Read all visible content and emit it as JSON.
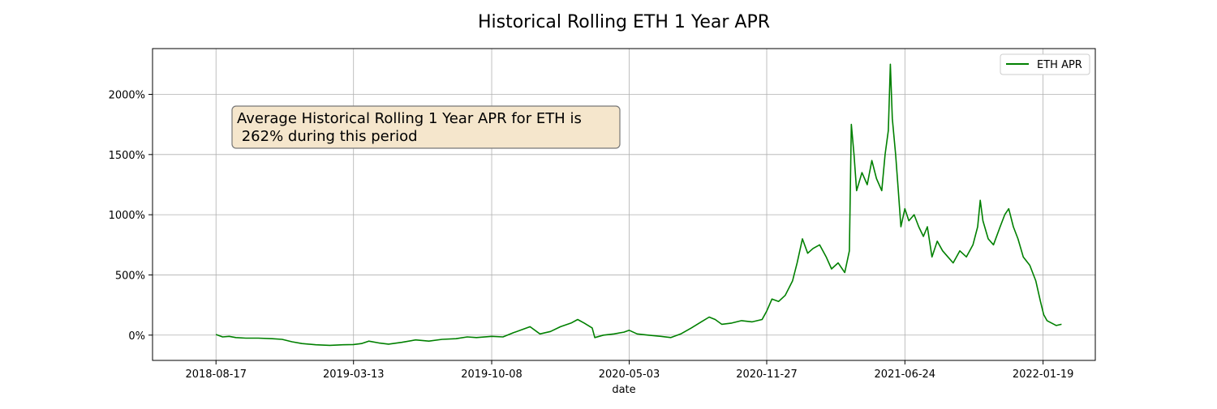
{
  "chart_data": {
    "type": "line",
    "title": "Historical Rolling ETH 1 Year APR",
    "xlabel": "date",
    "ylabel": "",
    "x_tick_labels": [
      "2018-08-17",
      "2019-03-13",
      "2019-10-08",
      "2020-05-03",
      "2020-11-27",
      "2021-06-24",
      "2022-01-19"
    ],
    "y_ticks": [
      0,
      500,
      1000,
      1500,
      2000
    ],
    "y_tick_labels": [
      "0%",
      "500%",
      "1000%",
      "1500%",
      "2000%"
    ],
    "xlim": [
      "2018-05-13",
      "2022-04-08"
    ],
    "ylim": [
      -210,
      2380
    ],
    "grid": true,
    "legend_position": "top-right",
    "annotation": {
      "lines": [
        "Average Historical Rolling 1 Year APR for ETH is",
        " 262% during this period"
      ],
      "background": "#f5e6cc"
    },
    "series": [
      {
        "name": "ETH APR",
        "color": "#008000",
        "points": [
          [
            "2018-08-17",
            5
          ],
          [
            "2018-08-27",
            -15
          ],
          [
            "2018-09-06",
            -10
          ],
          [
            "2018-09-16",
            -20
          ],
          [
            "2018-10-01",
            -25
          ],
          [
            "2018-10-20",
            -25
          ],
          [
            "2018-11-10",
            -30
          ],
          [
            "2018-11-25",
            -35
          ],
          [
            "2018-12-10",
            -55
          ],
          [
            "2018-12-25",
            -70
          ],
          [
            "2019-01-15",
            -80
          ],
          [
            "2019-02-05",
            -85
          ],
          [
            "2019-02-25",
            -80
          ],
          [
            "2019-03-13",
            -78
          ],
          [
            "2019-03-25",
            -70
          ],
          [
            "2019-04-05",
            -50
          ],
          [
            "2019-04-20",
            -65
          ],
          [
            "2019-05-05",
            -75
          ],
          [
            "2019-05-25",
            -60
          ],
          [
            "2019-06-15",
            -40
          ],
          [
            "2019-07-05",
            -50
          ],
          [
            "2019-07-25",
            -35
          ],
          [
            "2019-08-15",
            -30
          ],
          [
            "2019-09-01",
            -15
          ],
          [
            "2019-09-15",
            -20
          ],
          [
            "2019-10-08",
            -10
          ],
          [
            "2019-10-25",
            -15
          ],
          [
            "2019-11-10",
            20
          ],
          [
            "2019-11-25",
            50
          ],
          [
            "2019-12-05",
            70
          ],
          [
            "2019-12-20",
            10
          ],
          [
            "2020-01-05",
            30
          ],
          [
            "2020-01-20",
            70
          ],
          [
            "2020-02-05",
            100
          ],
          [
            "2020-02-15",
            130
          ],
          [
            "2020-02-25",
            100
          ],
          [
            "2020-03-08",
            60
          ],
          [
            "2020-03-12",
            -20
          ],
          [
            "2020-03-25",
            0
          ],
          [
            "2020-04-10",
            10
          ],
          [
            "2020-04-25",
            25
          ],
          [
            "2020-05-03",
            40
          ],
          [
            "2020-05-15",
            10
          ],
          [
            "2020-06-01",
            0
          ],
          [
            "2020-06-20",
            -10
          ],
          [
            "2020-07-05",
            -20
          ],
          [
            "2020-07-20",
            10
          ],
          [
            "2020-08-05",
            60
          ],
          [
            "2020-08-20",
            110
          ],
          [
            "2020-09-01",
            150
          ],
          [
            "2020-09-10",
            130
          ],
          [
            "2020-09-20",
            90
          ],
          [
            "2020-10-05",
            100
          ],
          [
            "2020-10-20",
            120
          ],
          [
            "2020-11-05",
            110
          ],
          [
            "2020-11-20",
            130
          ],
          [
            "2020-11-27",
            200
          ],
          [
            "2020-12-05",
            300
          ],
          [
            "2020-12-15",
            280
          ],
          [
            "2020-12-25",
            330
          ],
          [
            "2021-01-05",
            450
          ],
          [
            "2021-01-12",
            600
          ],
          [
            "2021-01-20",
            800
          ],
          [
            "2021-01-28",
            680
          ],
          [
            "2021-02-05",
            720
          ],
          [
            "2021-02-15",
            750
          ],
          [
            "2021-02-25",
            650
          ],
          [
            "2021-03-05",
            550
          ],
          [
            "2021-03-15",
            600
          ],
          [
            "2021-03-25",
            520
          ],
          [
            "2021-04-01",
            700
          ],
          [
            "2021-04-04",
            1750
          ],
          [
            "2021-04-08",
            1500
          ],
          [
            "2021-04-12",
            1200
          ],
          [
            "2021-04-20",
            1350
          ],
          [
            "2021-04-28",
            1250
          ],
          [
            "2021-05-05",
            1450
          ],
          [
            "2021-05-12",
            1300
          ],
          [
            "2021-05-20",
            1200
          ],
          [
            "2021-05-25",
            1500
          ],
          [
            "2021-05-30",
            1700
          ],
          [
            "2021-06-02",
            2250
          ],
          [
            "2021-06-05",
            1800
          ],
          [
            "2021-06-10",
            1500
          ],
          [
            "2021-06-14",
            1200
          ],
          [
            "2021-06-18",
            900
          ],
          [
            "2021-06-24",
            1050
          ],
          [
            "2021-06-30",
            950
          ],
          [
            "2021-07-08",
            1000
          ],
          [
            "2021-07-15",
            900
          ],
          [
            "2021-07-22",
            820
          ],
          [
            "2021-07-28",
            900
          ],
          [
            "2021-08-04",
            650
          ],
          [
            "2021-08-12",
            780
          ],
          [
            "2021-08-20",
            700
          ],
          [
            "2021-08-28",
            650
          ],
          [
            "2021-09-05",
            600
          ],
          [
            "2021-09-15",
            700
          ],
          [
            "2021-09-25",
            650
          ],
          [
            "2021-10-05",
            750
          ],
          [
            "2021-10-12",
            900
          ],
          [
            "2021-10-16",
            1120
          ],
          [
            "2021-10-20",
            950
          ],
          [
            "2021-10-28",
            800
          ],
          [
            "2021-11-05",
            750
          ],
          [
            "2021-11-15",
            900
          ],
          [
            "2021-11-22",
            1000
          ],
          [
            "2021-11-28",
            1050
          ],
          [
            "2021-12-05",
            900
          ],
          [
            "2021-12-12",
            800
          ],
          [
            "2021-12-20",
            650
          ],
          [
            "2021-12-30",
            580
          ],
          [
            "2022-01-08",
            450
          ],
          [
            "2022-01-15",
            280
          ],
          [
            "2022-01-20",
            170
          ],
          [
            "2022-01-25",
            120
          ],
          [
            "2022-02-01",
            100
          ],
          [
            "2022-02-08",
            80
          ],
          [
            "2022-02-16",
            90
          ]
        ]
      }
    ]
  }
}
